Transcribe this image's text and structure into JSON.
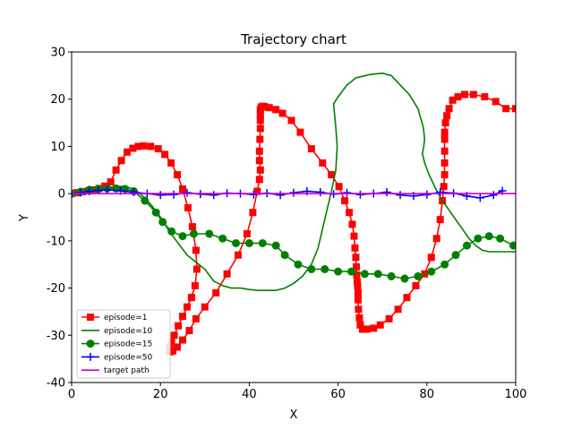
{
  "chart_data": {
    "type": "line",
    "title": "Trajectory chart",
    "xlabel": "X",
    "ylabel": "Y",
    "xlim": [
      0,
      100
    ],
    "ylim": [
      -40,
      30
    ],
    "xticks": [
      0,
      20,
      40,
      60,
      80,
      100
    ],
    "yticks": [
      -40,
      -30,
      -20,
      -10,
      0,
      10,
      20,
      30
    ],
    "grid": false,
    "legend_position": "lower-left",
    "series": [
      {
        "name": "episode=1",
        "color": "#ff0000",
        "marker": "square",
        "x": [
          0,
          1.2,
          2.5,
          3.8,
          5,
          6.2,
          7.5,
          8.8,
          10,
          11.2,
          12.5,
          13.8,
          15,
          16.2,
          17.8,
          19.5,
          21,
          22.4,
          23.8,
          25,
          26.2,
          27.2,
          28,
          28.2,
          27.8,
          27,
          26,
          25,
          24,
          23.1,
          22.5,
          22.1,
          22,
          22.2,
          22.8,
          23.8,
          25,
          26.5,
          28,
          30,
          32.5,
          35,
          37.5,
          39.5,
          40.8,
          41.8,
          42.3,
          42.5,
          42.3,
          42.3,
          42.4,
          42.5,
          42.5,
          42.5,
          42.5,
          42.7,
          43,
          43.5,
          44.5,
          46,
          47.5,
          49.5,
          51.5,
          54,
          56.5,
          58.5,
          60.2,
          61.5,
          62.5,
          63.2,
          63.6,
          63.8,
          64,
          64.1,
          64.2,
          64.3,
          64.4,
          64.5,
          64.5,
          64.6,
          64.8,
          65,
          65.5,
          66.5,
          68,
          69.5,
          71.5,
          73.5,
          75.5,
          77.5,
          79.5,
          81,
          82.2,
          83,
          83.5,
          83.8,
          84,
          84,
          84,
          84,
          84,
          84.2,
          84.5,
          85,
          85.8,
          87,
          88.5,
          90.5,
          93,
          95.5,
          97.8,
          100
        ],
        "y": [
          0,
          0.2,
          0.4,
          0.6,
          0.8,
          1.1,
          1.6,
          2.5,
          5,
          7,
          8.8,
          9.6,
          10,
          10.1,
          10,
          9.5,
          8.3,
          6.5,
          4,
          1,
          -3,
          -7,
          -12,
          -16,
          -19.5,
          -22,
          -24,
          -26,
          -28,
          -30,
          -31.5,
          -32.5,
          -33.3,
          -33.5,
          -33.3,
          -32.5,
          -31,
          -29,
          -26.5,
          -24,
          -21,
          -17,
          -13,
          -8.5,
          -4,
          0.5,
          3,
          5,
          7,
          9,
          11.5,
          13.8,
          15.5,
          16.8,
          17.8,
          18.3,
          18.5,
          18.4,
          18.2,
          17.8,
          17,
          15.5,
          13,
          9.5,
          6.5,
          4,
          1.5,
          -1.5,
          -4,
          -6.5,
          -9,
          -11.5,
          -13.5,
          -15.5,
          -17.2,
          -18.7,
          -19.5,
          -21,
          -22.5,
          -24.5,
          -26.3,
          -27.8,
          -28.7,
          -28.7,
          -28.5,
          -27.8,
          -26.5,
          -24.5,
          -22,
          -19.5,
          -17,
          -13.5,
          -9.5,
          -5.5,
          -1.5,
          1.5,
          4,
          6.5,
          9,
          11.5,
          13,
          15,
          16.5,
          18,
          19.8,
          20.5,
          21,
          21,
          20.5,
          19.5,
          18,
          18
        ]
      },
      {
        "name": "episode=10",
        "color": "#008000",
        "marker": "none",
        "x": [
          0,
          2,
          4,
          6,
          8,
          10,
          12,
          14,
          16,
          18,
          20,
          22,
          24,
          26,
          28,
          30,
          32,
          34,
          36,
          38,
          40,
          42,
          44,
          46,
          48,
          50,
          52,
          54,
          55.5,
          57,
          58.5,
          59.5,
          59.8,
          59.5,
          59.2,
          59,
          60,
          62,
          64,
          67,
          70,
          72,
          74,
          76,
          78,
          79.2,
          79.5,
          79.3,
          79,
          79.5,
          80.5,
          82,
          83.5,
          85,
          86.5,
          88,
          89.5,
          91,
          92.5,
          94,
          96,
          98,
          100
        ],
        "y": [
          0,
          0.3,
          0.6,
          0.9,
          1.2,
          1.5,
          1.5,
          1,
          -0.5,
          -2.5,
          -5,
          -8,
          -10.5,
          -13,
          -14.5,
          -16,
          -18.5,
          -19.5,
          -20,
          -20,
          -20.3,
          -20.5,
          -20.5,
          -20.5,
          -20,
          -19,
          -17.5,
          -15,
          -11.5,
          -5.5,
          0.5,
          5,
          10,
          14,
          17,
          19,
          20.5,
          23,
          24.5,
          25.2,
          25.5,
          25,
          23,
          21,
          18,
          14,
          11.5,
          10,
          8.5,
          6.5,
          4,
          1,
          -1.5,
          -3.5,
          -5.5,
          -7.5,
          -9.5,
          -11,
          -12,
          -12.3,
          -12.3,
          -12.3,
          -12.3
        ]
      },
      {
        "name": "episode=15",
        "color": "#008000",
        "marker": "circle",
        "x": [
          0,
          2,
          4,
          6,
          8,
          10,
          12,
          14,
          16.5,
          19,
          20.5,
          22.5,
          25,
          27.5,
          31,
          34,
          37,
          40,
          43,
          46,
          48,
          51,
          54,
          57,
          60,
          63,
          66,
          69,
          72,
          75,
          78,
          81,
          84,
          86.5,
          89,
          91.5,
          94,
          96.5,
          99.5
        ],
        "y": [
          0,
          0.4,
          0.8,
          1,
          1.1,
          1.1,
          1,
          0.5,
          -1.5,
          -4,
          -6,
          -8,
          -9,
          -8.5,
          -8.5,
          -9.5,
          -10.5,
          -10.5,
          -10.5,
          -11,
          -13,
          -15,
          -16,
          -16,
          -16.5,
          -16.5,
          -17,
          -17,
          -17.5,
          -18,
          -17.5,
          -16.5,
          -15,
          -13,
          -11,
          -9.5,
          -9,
          -9.5,
          -11
        ]
      },
      {
        "name": "episode=50",
        "color": "#0000ff",
        "marker": "plus",
        "x": [
          0,
          2,
          4,
          6,
          8,
          11,
          14,
          17,
          20,
          23,
          26,
          29,
          32,
          35,
          38,
          41,
          44,
          47,
          50,
          53,
          56,
          59,
          62,
          65,
          68,
          71,
          74,
          77,
          80,
          83,
          86,
          89,
          92,
          95,
          97
        ],
        "y": [
          0,
          0.2,
          0.5,
          0.7,
          0.8,
          0.6,
          0.3,
          0,
          -0.3,
          -0.2,
          0.2,
          -0.1,
          -0.3,
          0.1,
          0,
          -0.2,
          0.1,
          -0.3,
          0.2,
          0.5,
          0.3,
          -0.1,
          0.2,
          -0.2,
          0,
          0.3,
          -0.3,
          -0.5,
          -0.2,
          0.3,
          0.1,
          -0.5,
          -0.9,
          -0.3,
          0.6
        ]
      },
      {
        "name": "target path",
        "color": "#cc00cc",
        "marker": "none",
        "x": [
          0,
          100
        ],
        "y": [
          0,
          0
        ]
      }
    ]
  }
}
